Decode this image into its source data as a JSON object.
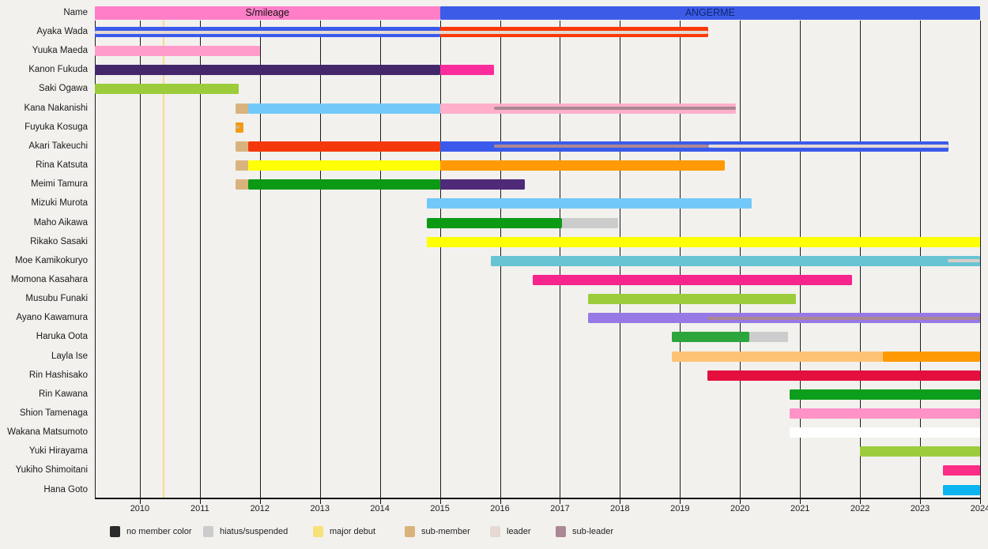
{
  "chart_data": {
    "type": "gantt-timeline",
    "name_column_label": "Name",
    "x_axis": {
      "min": 2009.25,
      "max": 2024.0,
      "ticks": [
        2010,
        2011,
        2012,
        2013,
        2014,
        2015,
        2016,
        2017,
        2018,
        2019,
        2020,
        2021,
        2022,
        2023,
        2024
      ]
    },
    "debut_line": {
      "year": 2010.4,
      "color": "#f9d88e",
      "label": "major debut"
    },
    "header": {
      "groups": [
        {
          "label": "S/mileage",
          "start": 2009.25,
          "end": 2015.0,
          "color": "#ff7ec8",
          "text_color": "#111111"
        },
        {
          "label": "ANGERME",
          "start": 2015.0,
          "end": 2024.0,
          "color": "#3c5ce8",
          "text_color": "#14246e"
        }
      ]
    },
    "role_colors": {
      "no_member": "#2b2b2b",
      "hiatus": "#cccccc",
      "major_debut": "#f7e27a",
      "sub_member": "#d9b37d",
      "leader": "#e5d9d2",
      "sub_leader": "#ab8794"
    },
    "members": [
      {
        "name": "Ayaka Wada",
        "segments": [
          {
            "start": 2009.25,
            "end": 2015.0,
            "color": "#3b5aec"
          },
          {
            "start": 2015.0,
            "end": 2019.47,
            "color": "#fc3908"
          }
        ],
        "stripes": [
          {
            "start": 2009.25,
            "end": 2019.47,
            "color": "#e5d9d2",
            "role": "leader"
          }
        ]
      },
      {
        "name": "Yuuka Maeda",
        "segments": [
          {
            "start": 2009.25,
            "end": 2012.0,
            "color": "#ff9ccb"
          }
        ],
        "stripes": []
      },
      {
        "name": "Kanon Fukuda",
        "segments": [
          {
            "start": 2009.25,
            "end": 2015.0,
            "color": "#44276b"
          },
          {
            "start": 2015.0,
            "end": 2015.9,
            "color": "#fb2d9c"
          }
        ],
        "stripes": []
      },
      {
        "name": "Saki Ogawa",
        "segments": [
          {
            "start": 2009.25,
            "end": 2011.65,
            "color": "#9ccc3c"
          }
        ],
        "stripes": []
      },
      {
        "name": "Kana Nakanishi",
        "segments": [
          {
            "start": 2011.6,
            "end": 2011.8,
            "color": "#d9b37d"
          },
          {
            "start": 2011.8,
            "end": 2015.0,
            "color": "#72c8f8"
          },
          {
            "start": 2015.0,
            "end": 2019.93,
            "color": "#ffafc9"
          }
        ],
        "stripes": [
          {
            "start": 2015.9,
            "end": 2019.93,
            "color": "#ab8794",
            "role": "sub-leader"
          }
        ]
      },
      {
        "name": "Fuyuka Kosuga",
        "segments": [
          {
            "start": 2011.6,
            "end": 2011.72,
            "color": "#f29b13"
          }
        ],
        "stripes": [
          {
            "start": 2011.6,
            "end": 2011.66,
            "color": "#d9b37d",
            "role": "sub-member"
          }
        ]
      },
      {
        "name": "Akari Takeuchi",
        "segments": [
          {
            "start": 2011.6,
            "end": 2011.8,
            "color": "#d9b37d"
          },
          {
            "start": 2011.8,
            "end": 2015.0,
            "color": "#f4380b"
          },
          {
            "start": 2015.0,
            "end": 2023.47,
            "color": "#3b5aec"
          }
        ],
        "stripes": [
          {
            "start": 2015.9,
            "end": 2019.47,
            "color": "#ab8794",
            "role": "sub-leader"
          },
          {
            "start": 2019.47,
            "end": 2023.47,
            "color": "#e5d9d2",
            "role": "leader"
          }
        ]
      },
      {
        "name": "Rina Katsuta",
        "segments": [
          {
            "start": 2011.6,
            "end": 2011.8,
            "color": "#d9b37d"
          },
          {
            "start": 2011.8,
            "end": 2015.0,
            "color": "#ffff05"
          },
          {
            "start": 2015.0,
            "end": 2019.74,
            "color": "#ff9a05"
          }
        ],
        "stripes": []
      },
      {
        "name": "Meimi Tamura",
        "segments": [
          {
            "start": 2011.6,
            "end": 2011.8,
            "color": "#d9b37d"
          },
          {
            "start": 2011.8,
            "end": 2015.0,
            "color": "#0c9a15"
          },
          {
            "start": 2015.0,
            "end": 2016.42,
            "color": "#4f2a78"
          }
        ],
        "stripes": []
      },
      {
        "name": "Mizuki Murota",
        "segments": [
          {
            "start": 2014.78,
            "end": 2020.2,
            "color": "#72c8f8"
          }
        ],
        "stripes": []
      },
      {
        "name": "Maho Aikawa",
        "segments": [
          {
            "start": 2014.78,
            "end": 2017.03,
            "color": "#0c9a15"
          },
          {
            "start": 2017.03,
            "end": 2017.97,
            "color": "#cccccc"
          }
        ],
        "stripes": []
      },
      {
        "name": "Rikako Sasaki",
        "segments": [
          {
            "start": 2014.78,
            "end": 2024.0,
            "color": "#ffff05"
          }
        ],
        "stripes": []
      },
      {
        "name": "Moe Kamikokuryo",
        "segments": [
          {
            "start": 2015.85,
            "end": 2024.0,
            "color": "#68c4d2"
          }
        ],
        "stripes": [
          {
            "start": 2023.46,
            "end": 2024.0,
            "color": "#d6cfc8",
            "role": "leader"
          }
        ]
      },
      {
        "name": "Momona Kasahara",
        "segments": [
          {
            "start": 2016.54,
            "end": 2021.87,
            "color": "#f5258c"
          }
        ],
        "stripes": []
      },
      {
        "name": "Musubu Funaki",
        "segments": [
          {
            "start": 2017.47,
            "end": 2020.93,
            "color": "#9ccc3c"
          }
        ],
        "stripes": []
      },
      {
        "name": "Ayano Kawamura",
        "segments": [
          {
            "start": 2017.47,
            "end": 2024.0,
            "color": "#9779e6"
          }
        ],
        "stripes": [
          {
            "start": 2019.45,
            "end": 2024.0,
            "color": "#ab8794",
            "role": "sub-leader"
          }
        ]
      },
      {
        "name": "Haruka Oota",
        "segments": [
          {
            "start": 2018.87,
            "end": 2020.15,
            "color": "#2ca53c"
          },
          {
            "start": 2020.15,
            "end": 2020.8,
            "color": "#cccccc"
          }
        ],
        "stripes": []
      },
      {
        "name": "Layla Ise",
        "segments": [
          {
            "start": 2018.87,
            "end": 2022.38,
            "color": "#ffc375"
          },
          {
            "start": 2022.38,
            "end": 2024.0,
            "color": "#ff9a05"
          }
        ],
        "stripes": []
      },
      {
        "name": "Rin Hashisako",
        "segments": [
          {
            "start": 2019.45,
            "end": 2024.0,
            "color": "#e40f3e"
          }
        ],
        "stripes": []
      },
      {
        "name": "Rin Kawana",
        "segments": [
          {
            "start": 2020.83,
            "end": 2024.0,
            "color": "#0c9e1c"
          }
        ],
        "stripes": []
      },
      {
        "name": "Shion Tamenaga",
        "segments": [
          {
            "start": 2020.83,
            "end": 2024.0,
            "color": "#ff93c8"
          }
        ],
        "stripes": []
      },
      {
        "name": "Wakana Matsumoto",
        "segments": [
          {
            "start": 2020.83,
            "end": 2024.0,
            "color": "#ffffff"
          }
        ],
        "stripes": []
      },
      {
        "name": "Yuki Hirayama",
        "segments": [
          {
            "start": 2022.0,
            "end": 2024.0,
            "color": "#9ccc3c"
          }
        ],
        "stripes": []
      },
      {
        "name": "Yukiho Shimoitani",
        "segments": [
          {
            "start": 2023.38,
            "end": 2024.0,
            "color": "#fb2d86"
          }
        ],
        "stripes": []
      },
      {
        "name": "Hana Goto",
        "segments": [
          {
            "start": 2023.38,
            "end": 2024.0,
            "color": "#0cb4f0"
          }
        ],
        "stripes": []
      }
    ]
  },
  "legend": {
    "items": [
      {
        "label": "no member color",
        "color": "#2b2b2b"
      },
      {
        "label": "hiatus/suspended",
        "color": "#cccccc"
      },
      {
        "label": "major debut",
        "color": "#f7e27a"
      },
      {
        "label": "sub-member",
        "color": "#d9b37d"
      },
      {
        "label": "leader",
        "color": "#e5d9d2"
      },
      {
        "label": "sub-leader",
        "color": "#ab8794"
      }
    ]
  }
}
